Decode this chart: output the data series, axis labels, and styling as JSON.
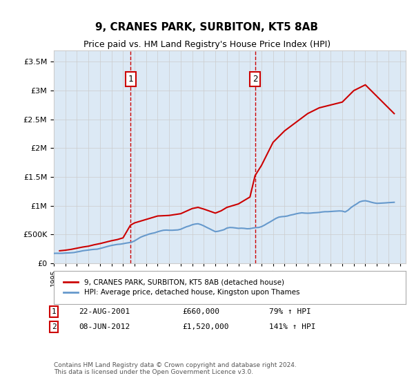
{
  "title": "9, CRANES PARK, SURBITON, KT5 8AB",
  "subtitle": "Price paid vs. HM Land Registry's House Price Index (HPI)",
  "hpi_label": "HPI: Average price, detached house, Kingston upon Thames",
  "property_label": "9, CRANES PARK, SURBITON, KT5 8AB (detached house)",
  "footnote": "Contains HM Land Registry data © Crown copyright and database right 2024.\nThis data is licensed under the Open Government Licence v3.0.",
  "sale1": {
    "label": "1",
    "date": "22-AUG-2001",
    "price": 660000,
    "pct": "79%",
    "dir": "↑"
  },
  "sale2": {
    "label": "2",
    "date": "08-JUN-2012",
    "price": 1520000,
    "pct": "141%",
    "dir": "↑"
  },
  "sale1_x": 2001.64,
  "sale2_x": 2012.44,
  "ylim": [
    0,
    3700000
  ],
  "xlim_left": 1995.0,
  "xlim_right": 2025.5,
  "background_color": "#dce9f5",
  "plot_bg": "#ffffff",
  "red_color": "#cc0000",
  "blue_color": "#6699cc",
  "grid_color": "#cccccc",
  "hpi_data": {
    "years": [
      1995.0,
      1995.25,
      1995.5,
      1995.75,
      1996.0,
      1996.25,
      1996.5,
      1996.75,
      1997.0,
      1997.25,
      1997.5,
      1997.75,
      1998.0,
      1998.25,
      1998.5,
      1998.75,
      1999.0,
      1999.25,
      1999.5,
      1999.75,
      2000.0,
      2000.25,
      2000.5,
      2000.75,
      2001.0,
      2001.25,
      2001.5,
      2001.75,
      2002.0,
      2002.25,
      2002.5,
      2002.75,
      2003.0,
      2003.25,
      2003.5,
      2003.75,
      2004.0,
      2004.25,
      2004.5,
      2004.75,
      2005.0,
      2005.25,
      2005.5,
      2005.75,
      2006.0,
      2006.25,
      2006.5,
      2006.75,
      2007.0,
      2007.25,
      2007.5,
      2007.75,
      2008.0,
      2008.25,
      2008.5,
      2008.75,
      2009.0,
      2009.25,
      2009.5,
      2009.75,
      2010.0,
      2010.25,
      2010.5,
      2010.75,
      2011.0,
      2011.25,
      2011.5,
      2011.75,
      2012.0,
      2012.25,
      2012.5,
      2012.75,
      2013.0,
      2013.25,
      2013.5,
      2013.75,
      2014.0,
      2014.25,
      2014.5,
      2014.75,
      2015.0,
      2015.25,
      2015.5,
      2015.75,
      2016.0,
      2016.25,
      2016.5,
      2016.75,
      2017.0,
      2017.25,
      2017.5,
      2017.75,
      2018.0,
      2018.25,
      2018.5,
      2018.75,
      2019.0,
      2019.25,
      2019.5,
      2019.75,
      2020.0,
      2020.25,
      2020.5,
      2020.75,
      2021.0,
      2021.25,
      2021.5,
      2021.75,
      2022.0,
      2022.25,
      2022.5,
      2022.75,
      2023.0,
      2023.25,
      2023.5,
      2023.75,
      2024.0,
      2024.25,
      2024.5
    ],
    "values": [
      170000,
      172000,
      171000,
      172000,
      176000,
      178000,
      181000,
      185000,
      195000,
      204000,
      215000,
      222000,
      228000,
      235000,
      240000,
      243000,
      255000,
      268000,
      282000,
      296000,
      308000,
      317000,
      326000,
      330000,
      338000,
      348000,
      356000,
      365000,
      388000,
      418000,
      449000,
      470000,
      487000,
      505000,
      518000,
      528000,
      546000,
      560000,
      572000,
      575000,
      572000,
      572000,
      575000,
      578000,
      590000,
      612000,
      633000,
      648000,
      668000,
      680000,
      685000,
      670000,
      648000,
      622000,
      598000,
      572000,
      548000,
      555000,
      568000,
      582000,
      610000,
      620000,
      618000,
      612000,
      605000,
      608000,
      605000,
      598000,
      600000,
      610000,
      618000,
      620000,
      635000,
      660000,
      690000,
      718000,
      748000,
      778000,
      800000,
      808000,
      812000,
      820000,
      835000,
      845000,
      858000,
      868000,
      875000,
      870000,
      868000,
      870000,
      875000,
      878000,
      882000,
      890000,
      895000,
      895000,
      898000,
      902000,
      905000,
      908000,
      905000,
      890000,
      920000,
      965000,
      1000000,
      1030000,
      1065000,
      1080000,
      1085000,
      1075000,
      1060000,
      1048000,
      1040000,
      1042000,
      1045000,
      1048000,
      1052000,
      1055000,
      1058000
    ]
  },
  "property_data": {
    "years": [
      1995.5,
      1996.0,
      1996.5,
      1997.0,
      1997.5,
      1998.0,
      1998.5,
      1999.0,
      1999.5,
      2000.0,
      2000.5,
      2001.0,
      2001.64,
      2002.0,
      2003.0,
      2004.0,
      2005.0,
      2006.0,
      2007.0,
      2007.5,
      2008.0,
      2009.0,
      2009.5,
      2010.0,
      2010.5,
      2011.0,
      2012.0,
      2012.44,
      2013.0,
      2014.0,
      2015.0,
      2016.0,
      2017.0,
      2018.0,
      2019.0,
      2020.0,
      2021.0,
      2022.0,
      2023.0,
      2024.0,
      2024.5
    ],
    "values": [
      215000,
      225000,
      240000,
      260000,
      280000,
      295000,
      320000,
      340000,
      365000,
      390000,
      410000,
      440000,
      660000,
      700000,
      760000,
      820000,
      830000,
      860000,
      950000,
      970000,
      940000,
      870000,
      910000,
      970000,
      1000000,
      1030000,
      1150000,
      1520000,
      1700000,
      2100000,
      2300000,
      2450000,
      2600000,
      2700000,
      2750000,
      2800000,
      3000000,
      3100000,
      2900000,
      2700000,
      2600000
    ]
  }
}
